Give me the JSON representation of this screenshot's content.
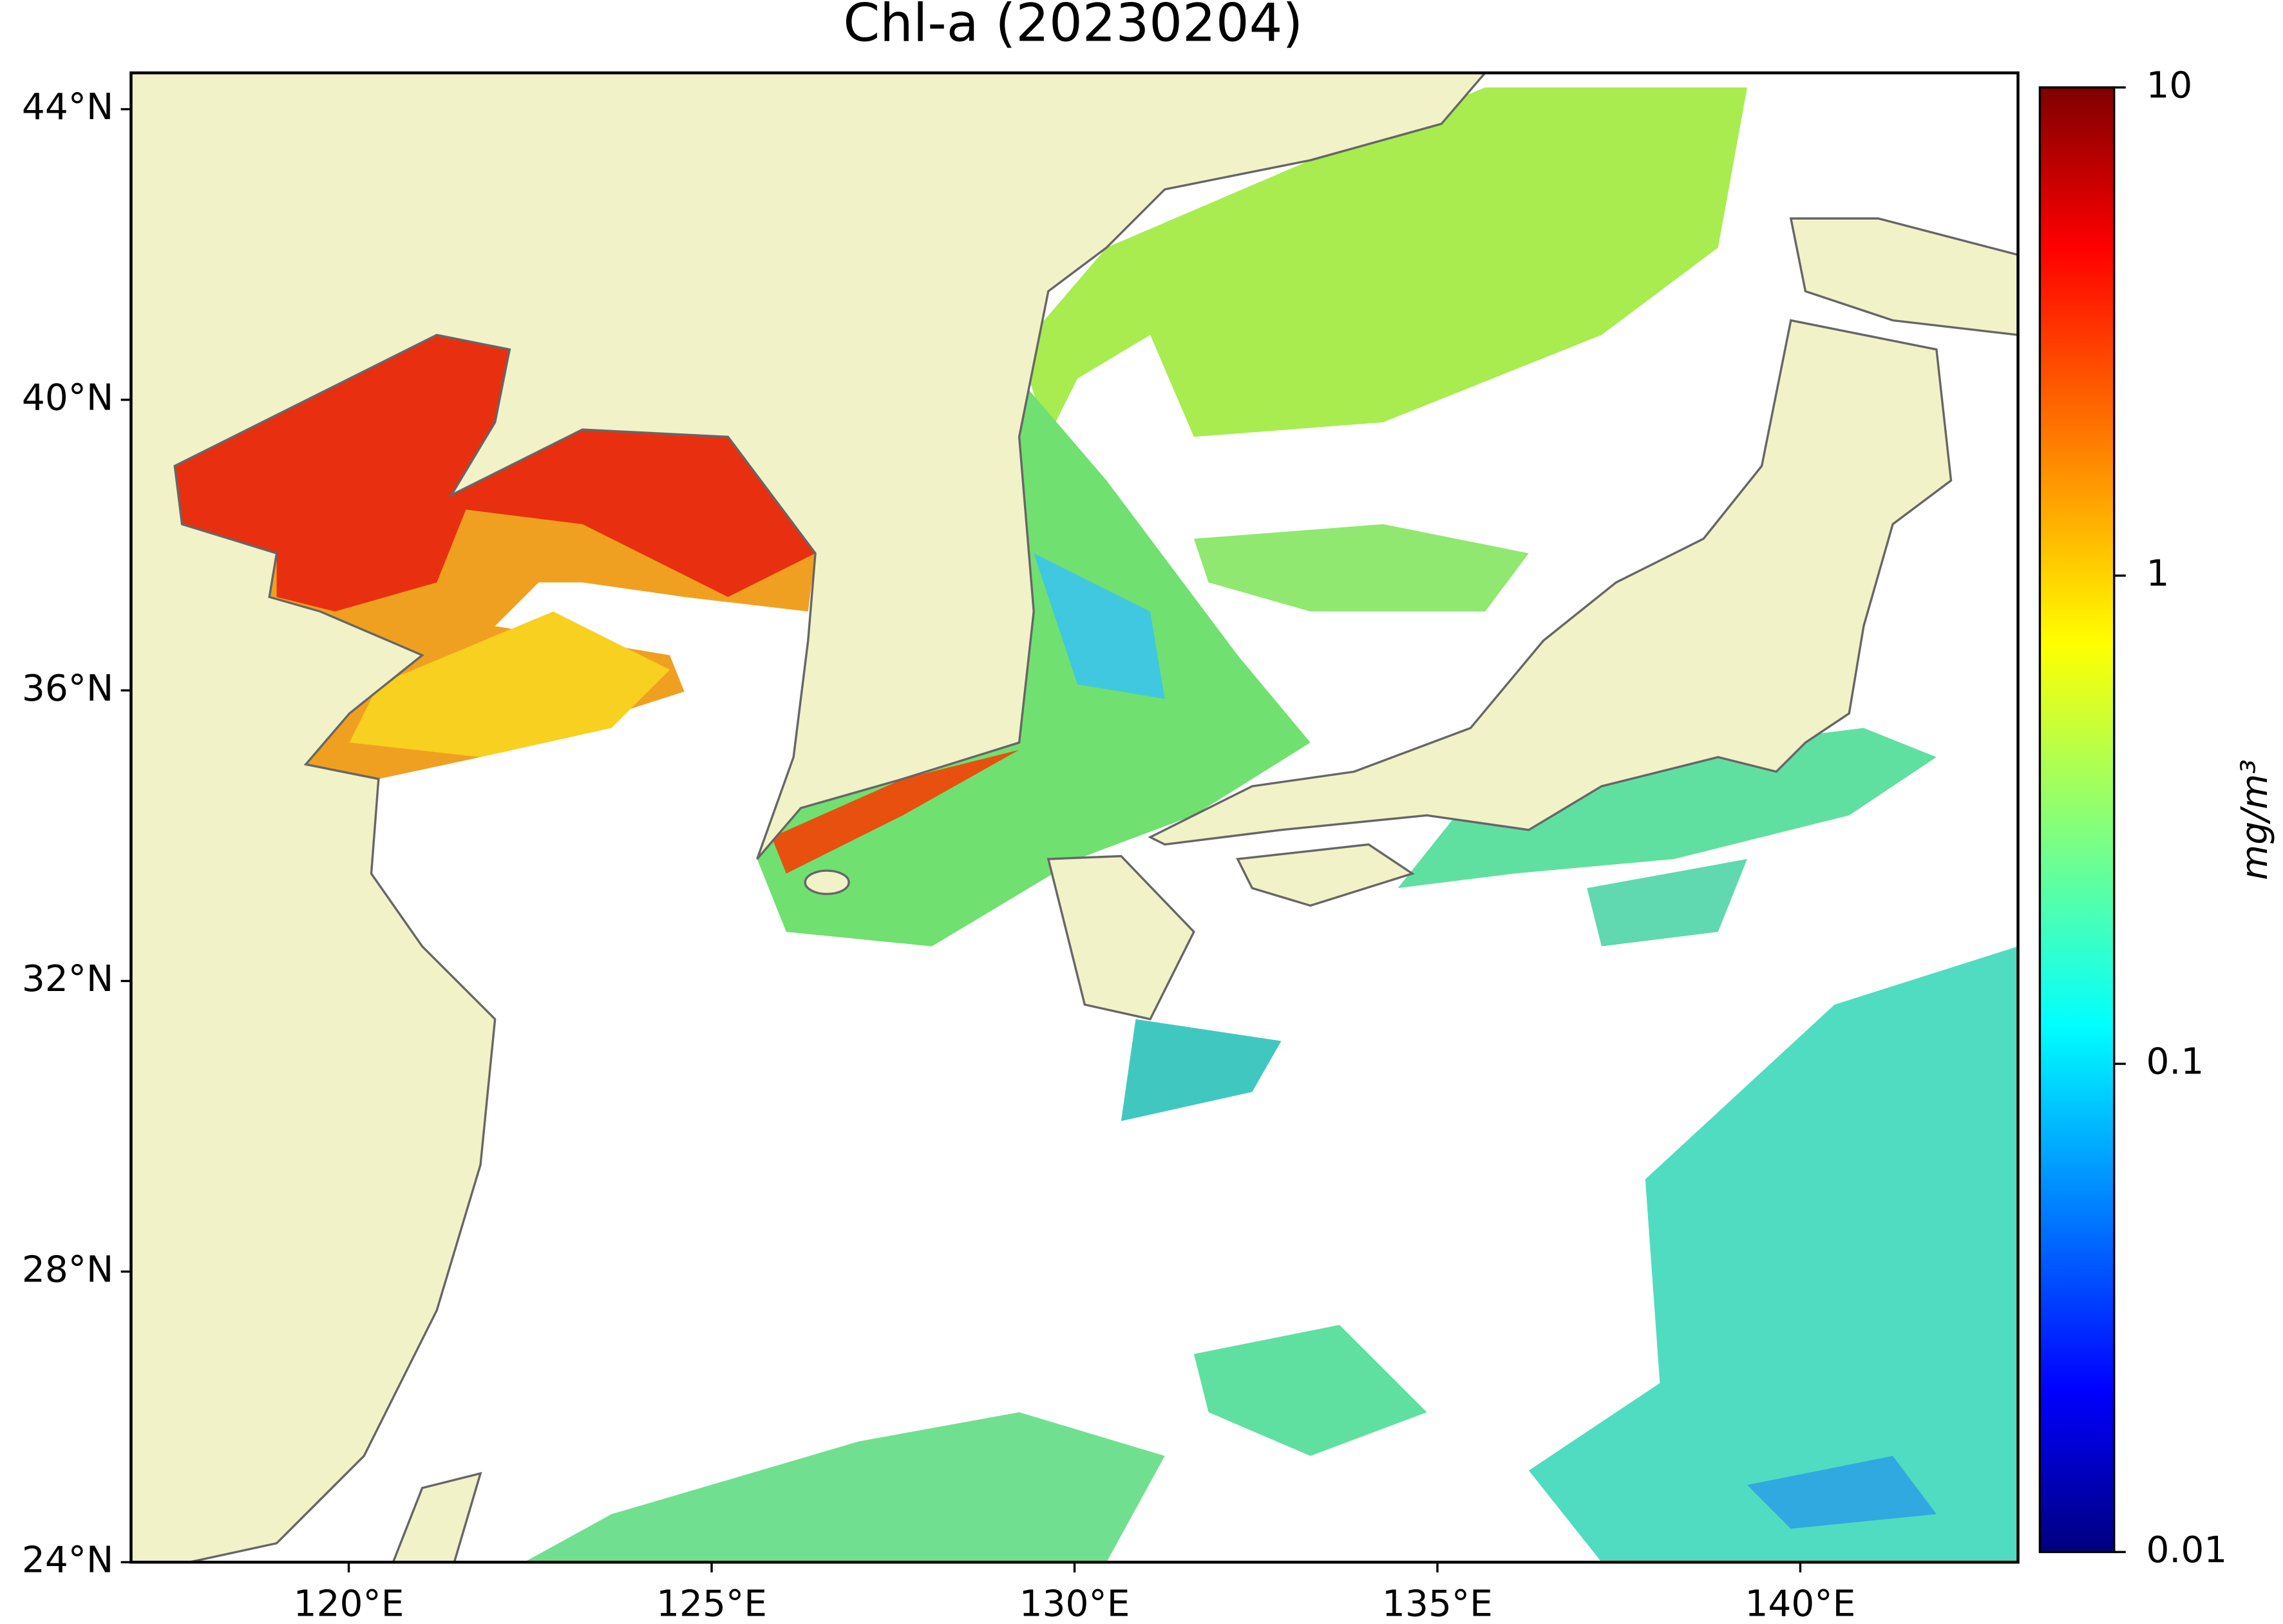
{
  "chart_data": {
    "type": "map",
    "title": "Chl-a (20230204)",
    "xlim": [
      117,
      143
    ],
    "ylim": [
      24,
      44.5
    ],
    "xticks": [
      {
        "value": 120,
        "label": "120°E"
      },
      {
        "value": 125,
        "label": "125°E"
      },
      {
        "value": 130,
        "label": "130°E"
      },
      {
        "value": 135,
        "label": "135°E"
      },
      {
        "value": 140,
        "label": "140°E"
      }
    ],
    "yticks": [
      {
        "value": 24,
        "label": "24°N"
      },
      {
        "value": 28,
        "label": "28°N"
      },
      {
        "value": 32,
        "label": "32°N"
      },
      {
        "value": 36,
        "label": "36°N"
      },
      {
        "value": 40,
        "label": "40°N"
      },
      {
        "value": 44,
        "label": "44°N"
      }
    ],
    "colorbar": {
      "label": "mg/m³",
      "colormap": "jet",
      "log_scale": true,
      "clim": [
        0.01,
        10
      ],
      "ticks": [
        0.01,
        0.1,
        1,
        10
      ]
    }
  }
}
